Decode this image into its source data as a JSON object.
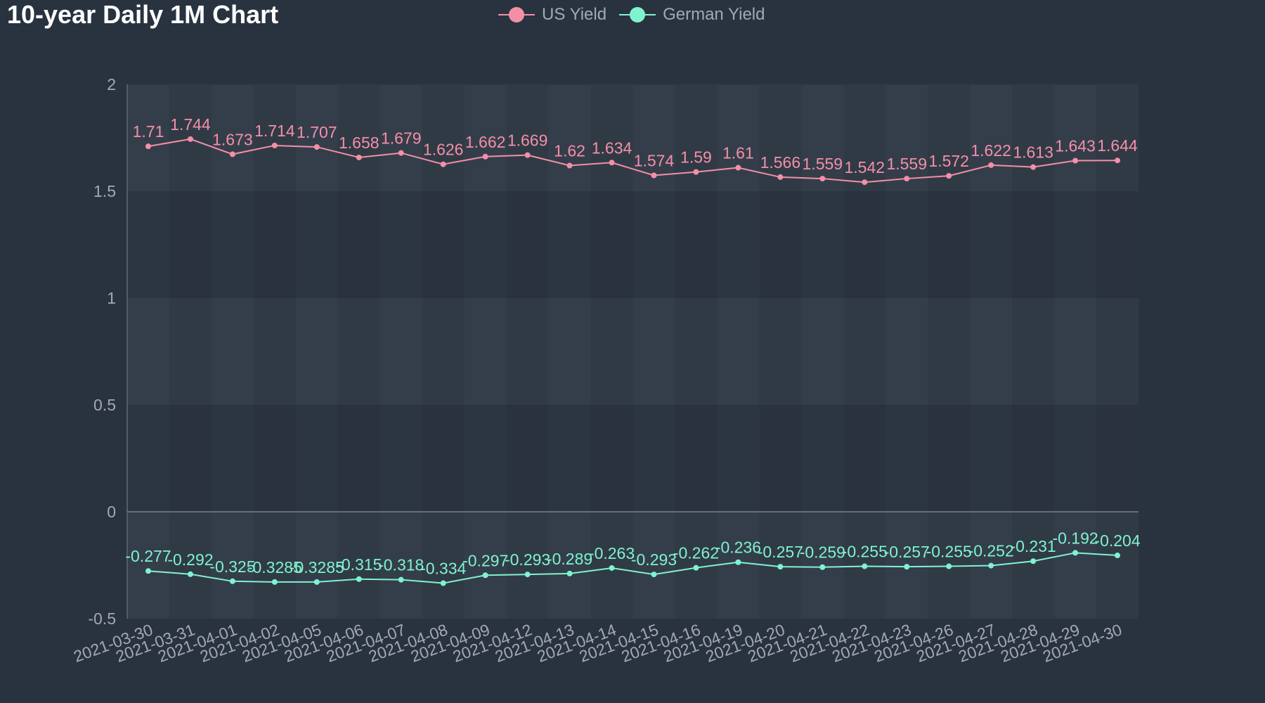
{
  "chart_data": {
    "type": "line",
    "title": "10-year Daily 1M Chart",
    "categories": [
      "2021-03-30",
      "2021-03-31",
      "2021-04-01",
      "2021-04-02",
      "2021-04-05",
      "2021-04-06",
      "2021-04-07",
      "2021-04-08",
      "2021-04-09",
      "2021-04-12",
      "2021-04-13",
      "2021-04-14",
      "2021-04-15",
      "2021-04-16",
      "2021-04-19",
      "2021-04-20",
      "2021-04-21",
      "2021-04-22",
      "2021-04-23",
      "2021-04-26",
      "2021-04-27",
      "2021-04-28",
      "2021-04-29",
      "2021-04-30"
    ],
    "series": [
      {
        "name": "US Yield",
        "color": "#f48fa8",
        "values": [
          1.71,
          1.744,
          1.673,
          1.714,
          1.707,
          1.658,
          1.679,
          1.626,
          1.662,
          1.669,
          1.62,
          1.634,
          1.574,
          1.59,
          1.61,
          1.566,
          1.559,
          1.542,
          1.559,
          1.572,
          1.622,
          1.613,
          1.643,
          1.644
        ]
      },
      {
        "name": "German Yield",
        "color": "#7ff3cf",
        "values": [
          -0.277,
          -0.292,
          -0.325,
          -0.3285,
          -0.3285,
          -0.315,
          -0.318,
          -0.334,
          -0.297,
          -0.293,
          -0.289,
          -0.263,
          -0.293,
          -0.262,
          -0.236,
          -0.257,
          -0.259,
          -0.255,
          -0.257,
          -0.255,
          -0.252,
          -0.231,
          -0.192,
          -0.204
        ]
      }
    ],
    "ylim": [
      -0.5,
      2
    ],
    "yticks": [
      "2",
      "1.5",
      "1",
      "0.5",
      "0",
      "-0.5"
    ],
    "legend_position": "top-center",
    "grid": true
  }
}
